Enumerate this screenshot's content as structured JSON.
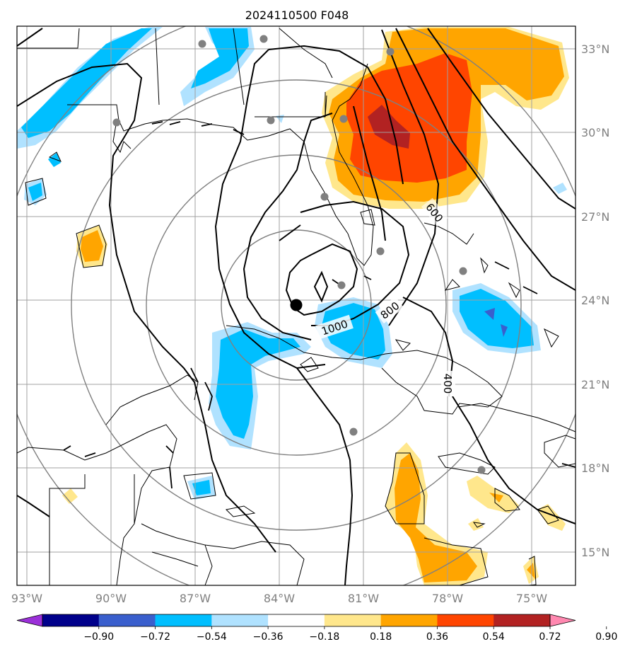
{
  "title": "2024110500 F048",
  "map": {
    "lon_range": [
      -93.0,
      -73.5
    ],
    "lat_range": [
      13.8,
      33.8
    ],
    "lon_ticks": [
      "93°W",
      "90°W",
      "87°W",
      "84°W",
      "81°W",
      "78°W",
      "75°W"
    ],
    "lat_ticks": [
      "33°N",
      "30°N",
      "27°N",
      "24°N",
      "21°N",
      "18°N",
      "15°N"
    ],
    "contour_labels": [
      "1000",
      "800",
      "600",
      "400"
    ],
    "storm_center": {
      "lon": -83.7,
      "lat": 23.8
    }
  },
  "colorbar": {
    "labels": [
      "−0.90",
      "−0.72",
      "−0.54",
      "−0.36",
      "−0.18",
      "0.18",
      "0.36",
      "0.54",
      "0.72",
      "0.90"
    ],
    "colors": [
      "#9b30d9",
      "#00008b",
      "#3a5fcd",
      "#00bfff",
      "#b0e2ff",
      "#ffffff",
      "#ffe78c",
      "#ffa500",
      "#ff4500",
      "#b22222",
      "#ff88b0"
    ]
  },
  "colors": {
    "grid": "#a0a0a0",
    "range_rings": "#808080",
    "contour": "#000000",
    "station": "#808080"
  }
}
